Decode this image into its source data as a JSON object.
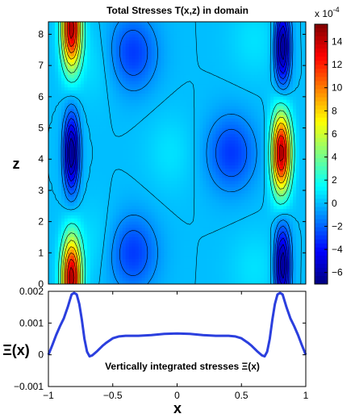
{
  "chart_data": [
    {
      "type": "heatmap",
      "title": "Total Stresses T(x,z) in domain",
      "xlabel": "",
      "ylabel": "z",
      "xlim": [
        -1,
        1
      ],
      "ylim": [
        0,
        8.4
      ],
      "yticks": [
        0,
        1,
        2,
        3,
        4,
        5,
        6,
        7,
        8
      ],
      "colorbar": {
        "exponent_label": "x 10",
        "exponent_power": "-4",
        "range": [
          -7,
          15.5
        ],
        "ticks": [
          -6,
          -4,
          -2,
          0,
          2,
          4,
          6,
          8,
          10,
          12,
          14
        ],
        "colormap": "jet"
      },
      "contour_levels": [
        -6,
        -5,
        -4,
        -3,
        -2,
        -1,
        0,
        2,
        4,
        6,
        8,
        10,
        12,
        14
      ],
      "features": [
        {
          "x": -0.82,
          "z": 8.2,
          "value": 15,
          "kind": "max"
        },
        {
          "x": -0.82,
          "z": 0.2,
          "value": 15,
          "kind": "max"
        },
        {
          "x": 0.81,
          "z": 4.2,
          "value": 15,
          "kind": "max"
        },
        {
          "x": -0.82,
          "z": 4.2,
          "value": -7,
          "kind": "min"
        },
        {
          "x": 0.82,
          "z": 7.6,
          "value": -7,
          "kind": "min"
        },
        {
          "x": 0.82,
          "z": 0.6,
          "value": -7,
          "kind": "min"
        },
        {
          "x": -0.35,
          "z": 7.4,
          "value": -3,
          "kind": "min"
        },
        {
          "x": -0.35,
          "z": 1.0,
          "value": -3,
          "kind": "min"
        },
        {
          "x": 0.42,
          "z": 4.2,
          "value": -3,
          "kind": "min"
        },
        {
          "x": -0.62,
          "z": 7.1,
          "value": 0.8,
          "kind": "max"
        },
        {
          "x": -0.62,
          "z": 1.3,
          "value": 0.8,
          "kind": "max"
        },
        {
          "x": -0.05,
          "z": 4.2,
          "value": 0.8,
          "kind": "max"
        },
        {
          "x": 0.6,
          "z": 7.8,
          "value": 0.8,
          "kind": "max"
        },
        {
          "x": 0.6,
          "z": 0.5,
          "value": 0.8,
          "kind": "max"
        }
      ]
    },
    {
      "type": "line",
      "title": "",
      "xlabel": "x",
      "ylabel": "Ξ(x)",
      "xlim": [
        -1,
        1
      ],
      "ylim": [
        -0.001,
        0.002
      ],
      "xticks": [
        -1,
        -0.5,
        0,
        0.5,
        1
      ],
      "xtick_labels": [
        "−1",
        "−0.5",
        "0",
        "0.5",
        "1"
      ],
      "yticks": [
        -0.001,
        0,
        0.001,
        0.002
      ],
      "ytick_labels": [
        "−0.001",
        "0",
        "0.001",
        "0.002"
      ],
      "annotation": "Vertically integrated stresses  Ξ(x)",
      "series": [
        {
          "color": "#2b3fde",
          "x": [
            -1.0,
            -0.97,
            -0.94,
            -0.91,
            -0.88,
            -0.85,
            -0.82,
            -0.8,
            -0.78,
            -0.76,
            -0.74,
            -0.72,
            -0.7,
            -0.68,
            -0.66,
            -0.62,
            -0.58,
            -0.55,
            -0.5,
            -0.45,
            -0.4,
            -0.3,
            -0.2,
            -0.1,
            0.0,
            0.1,
            0.2,
            0.3,
            0.4,
            0.45,
            0.5,
            0.55,
            0.58,
            0.62,
            0.66,
            0.68,
            0.7,
            0.72,
            0.74,
            0.76,
            0.78,
            0.8,
            0.82,
            0.85,
            0.88,
            0.91,
            0.94,
            0.97,
            1.0
          ],
          "y": [
            0.0,
            0.0003,
            0.00062,
            0.0009,
            0.00115,
            0.0015,
            0.0019,
            0.00195,
            0.0019,
            0.0016,
            0.0011,
            0.0005,
            0.0001,
            -5e-05,
            -2e-05,
            0.00012,
            0.00028,
            0.00038,
            0.00052,
            0.00058,
            0.0006,
            0.0006,
            0.00062,
            0.00066,
            0.00067,
            0.00066,
            0.00062,
            0.0006,
            0.0006,
            0.00058,
            0.00052,
            0.00038,
            0.00028,
            0.00012,
            -2e-05,
            -5e-05,
            0.0001,
            0.0005,
            0.0011,
            0.0016,
            0.0019,
            0.00195,
            0.0019,
            0.0015,
            0.00115,
            0.0009,
            0.00062,
            0.0003,
            0.0
          ]
        }
      ]
    }
  ]
}
